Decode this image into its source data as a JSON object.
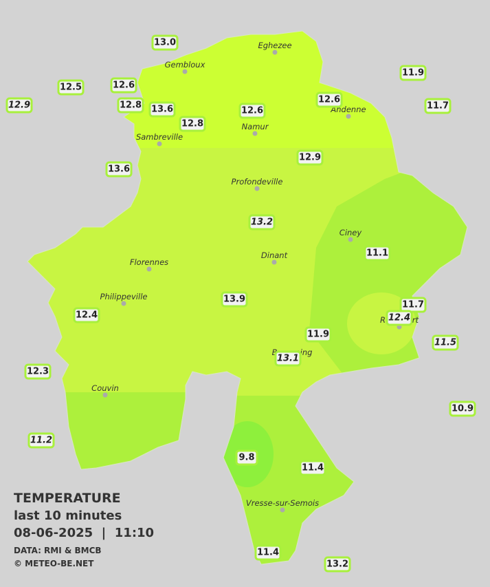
{
  "info": {
    "title": "TEMPERATURE",
    "subtitle": "last 10 minutes",
    "datetime": "08-06-2025  |  11:10",
    "source": "DATA: RMI & BMCB",
    "credit": "© METEO-BE.NET"
  },
  "cities": [
    {
      "name": "Eghezee"
    },
    {
      "name": "Gembloux"
    },
    {
      "name": "Andenne"
    },
    {
      "name": "Namur"
    },
    {
      "name": "Sambreville"
    },
    {
      "name": "Profondeville"
    },
    {
      "name": "Ciney"
    },
    {
      "name": "Dinant"
    },
    {
      "name": "Florennes"
    },
    {
      "name": "Philippeville"
    },
    {
      "name": "Couvin"
    },
    {
      "name": "Vresse-sur-Semois"
    },
    {
      "name": "Rochefort"
    },
    {
      "name": "Beauraing"
    }
  ],
  "stations": [
    {
      "value": "13.0"
    },
    {
      "value": "12.5"
    },
    {
      "value": "12.9"
    },
    {
      "value": "12.6"
    },
    {
      "value": "12.8"
    },
    {
      "value": "13.6"
    },
    {
      "value": "12.8"
    },
    {
      "value": "12.6"
    },
    {
      "value": "12.6"
    },
    {
      "value": "11.9"
    },
    {
      "value": "11.7"
    },
    {
      "value": "13.6"
    },
    {
      "value": "12.9"
    },
    {
      "value": "13.2"
    },
    {
      "value": "11.1"
    },
    {
      "value": "13.9"
    },
    {
      "value": "12.4"
    },
    {
      "value": "11.7"
    },
    {
      "value": "12.4"
    },
    {
      "value": "11.9"
    },
    {
      "value": "11.5"
    },
    {
      "value": "13.1"
    },
    {
      "value": "12.3"
    },
    {
      "value": "10.9"
    },
    {
      "value": "11.2"
    },
    {
      "value": "9.8"
    },
    {
      "value": "11.4"
    },
    {
      "value": "11.4"
    },
    {
      "value": "13.2"
    }
  ]
}
